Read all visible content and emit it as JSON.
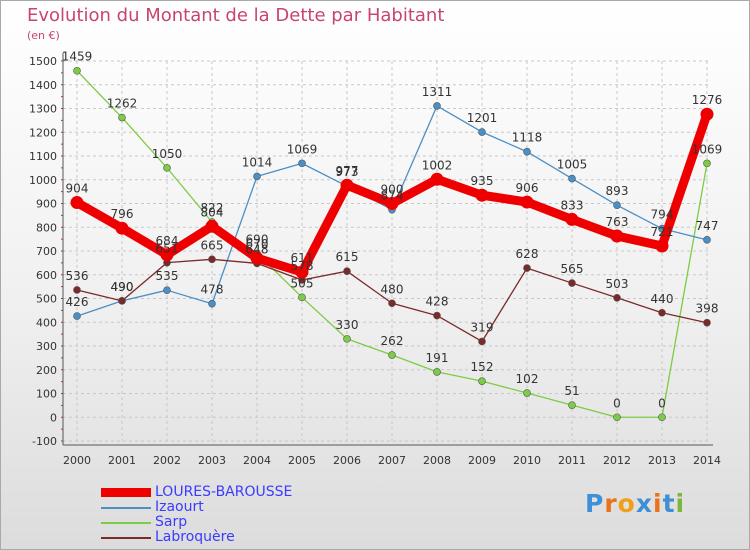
{
  "title": "Evolution du Montant de la Dette par Habitant",
  "subtitle": "(en €)",
  "brand": {
    "text": "Proxiti",
    "letter_colors": [
      "#3d8fd6",
      "#e8731a",
      "#f0a018",
      "#3d8fd6",
      "#e8731a",
      "#3d8fd6",
      "#7ab83a"
    ]
  },
  "chart_data": {
    "type": "line",
    "title": "Evolution du Montant de la Dette par Habitant",
    "ylabel": "(en €)",
    "ylim": [
      -100,
      1500
    ],
    "yticks": [
      -100,
      0,
      100,
      200,
      300,
      400,
      500,
      600,
      700,
      800,
      900,
      1000,
      1100,
      1200,
      1300,
      1400,
      1500
    ],
    "x": [
      "2000",
      "2001",
      "2002",
      "2003",
      "2004",
      "2005",
      "2006",
      "2007",
      "2008",
      "2009",
      "2010",
      "2011",
      "2012",
      "2013",
      "2014"
    ],
    "grid": true,
    "legend": "bottom-left",
    "series": [
      {
        "name": "LOURES-BAROUSSE",
        "color": "#ee0000",
        "values": [
          904,
          796,
          684,
          804,
          670,
          611,
          977,
          900,
          1002,
          935,
          906,
          833,
          763,
          721,
          1276
        ]
      },
      {
        "name": "Izaourt",
        "color": "#4a8fc6",
        "values": [
          426,
          490,
          535,
          478,
          1014,
          1069,
          973,
          874,
          1311,
          1201,
          1118,
          1005,
          893,
          794,
          747
        ]
      },
      {
        "name": "Sarp",
        "color": "#7ccc44",
        "values": [
          1459,
          1262,
          1050,
          822,
          690,
          505,
          330,
          262,
          191,
          152,
          102,
          51,
          0,
          0,
          1069
        ]
      },
      {
        "name": "Labroquère",
        "color": "#7a2a2a",
        "values": [
          536,
          490,
          651,
          665,
          648,
          578,
          615,
          480,
          428,
          319,
          628,
          565,
          503,
          440,
          398
        ]
      }
    ]
  }
}
